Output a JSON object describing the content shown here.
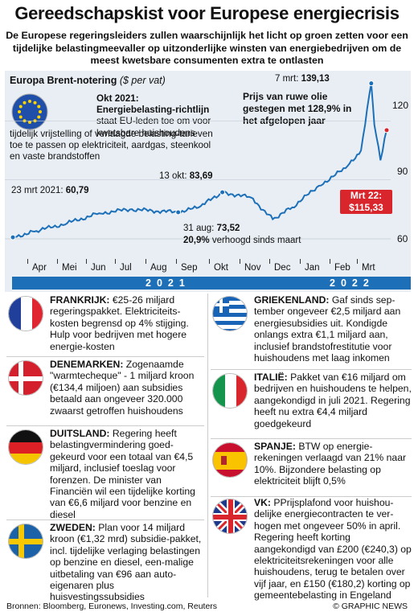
{
  "title": "Gereedschapskist voor Europese energiecrisis",
  "intro": "De Europese regeringsleiders zullen waarschijnlijk het licht op groen zetten voor een tijdelijke belastingmeevaller op uitzonderlijke winsten van energiebedrijven om de meest kwetsbare consumenten extra te ontlasten",
  "chart_title": "Europa Brent-notering",
  "chart_unit": "($ per vat)",
  "okt_head": "Okt 2021: Energiebelasting-richtlijn",
  "okt_rest": "staat EU-leden toe om voor kwetsbare huishoudens",
  "okt_body": "tijdelijk vrijstelling of verlaagde belasting-tarieven toe te passen op elektriciteit, aardgas, steenkool en vaste brandstoffen",
  "prijs": "Prijs van ruwe olie gestegen met 128,9% in het afgelopen jaar",
  "ann_7mrt_label": "7 mrt:",
  "ann_7mrt_value": "139,13",
  "ann_13okt_label": "13 okt:",
  "ann_13okt_value": "83,69",
  "ann_23mrt_label": "23 mrt 2021:",
  "ann_23mrt_value": "60,79",
  "ann_31aug_label": "31 aug:",
  "ann_31aug_value": "73,52",
  "ann_31aug_pct": "20,9%",
  "ann_31aug_rest": "verhoogd sinds maart",
  "mrt22_label": "Mrt 22:",
  "mrt22_value": "$115,33",
  "year_2021": "2021",
  "year_2022": "2022",
  "chart_data": {
    "type": "line",
    "x": [
      "2021-03-23",
      "2021-04-15",
      "2021-05-15",
      "2021-06-15",
      "2021-07-15",
      "2021-08-31",
      "2021-09-20",
      "2021-10-13",
      "2021-11-10",
      "2021-12-01",
      "2021-12-20",
      "2022-01-15",
      "2022-02-10",
      "2022-02-25",
      "2022-03-07",
      "2022-03-10",
      "2022-03-16",
      "2022-03-22"
    ],
    "values": [
      60.79,
      64,
      68,
      73,
      75,
      73.52,
      76,
      83.69,
      81,
      70,
      76,
      87,
      96,
      105,
      139.13,
      118,
      100,
      115.33
    ],
    "x_ticks": [
      "Apr",
      "Mei",
      "Jun",
      "Jul",
      "Aug",
      "Sep",
      "Okt",
      "Nov",
      "Dec",
      "Jan",
      "Feb",
      "Mrt"
    ],
    "y_ticks": [
      60,
      90,
      120
    ],
    "ylim": [
      55,
      145
    ]
  },
  "colors": {
    "accent": "#1d70b8",
    "red": "#d8262c",
    "chart_bg": "#e8eef4"
  },
  "countries": {
    "fr": {
      "head": "FRANKRIJK:",
      "body": "€25-26 miljard regeringspakket. Elektriciteits-kosten begrensd op 4% stijging. Hulp voor bedrijven met hogere energie-kosten"
    },
    "dk": {
      "head": "DENEMARKEN:",
      "body": "Zogenaamde \"warmtecheque\" - 1 miljard kroon (€134,4 miljoen) aan subsidies betaald aan ongeveer 320.000 zwaarst getroffen huishoudens"
    },
    "de": {
      "head": "DUITSLAND:",
      "body": "Regering heeft belastingvermindering goed-gekeurd voor een totaal van €4,5 miljard, inclusief toeslag voor forenzen. De minister van Financiën wil een tijdelijke korting van €6,6 miljard voor benzine en diesel"
    },
    "se": {
      "head": "ZWEDEN:",
      "body": "Plan voor 14 miljard kroon (€1,32 mrd) subsidie-pakket, incl. tijdelijke verlaging belastingen op benzine en diesel, een-malige uitbetaling van €96 aan auto-eigenaren plus huisvestingssubsidies"
    },
    "gr": {
      "head": "GRIEKENLAND:",
      "body": "Gaf sinds sep-tember ongeveer €2,5 miljard aan energiesubsidies uit. Kondigde onlangs extra €1,1 miljard aan, inclusief brandstofrestitutie voor huishoudens met laag inkomen"
    },
    "it": {
      "head": "ITALIË:",
      "body": "Pakket van €16 miljard om bedrijven en huishoudens te helpen, aangekondigd in juli 2021. Regering heeft nu extra €4,4 miljard goedgekeurd"
    },
    "es": {
      "head": "SPANJE:",
      "body": "BTW op energie-rekeningen verlaagd van 21% naar 10%. Bijzondere belasting op elektriciteit blijft 0,5%"
    },
    "uk": {
      "head": "VK:",
      "body": "PPrijsplafond voor huishou-delijke energiecontracten te ver-hogen met ongeveer 50% in april. Regering heeft korting aangekondigd van £200 (€240,3) op elektriciteitsrekeningen voor alle huishoudens, terug te betalen over vijf jaar, en £150 (€180,2) korting op gemeentebelasting in Engeland"
    }
  },
  "sources": "Bronnen: Bloomberg, Euronews, Investing.com, Reuters",
  "credit": "© GRAPHIC NEWS"
}
